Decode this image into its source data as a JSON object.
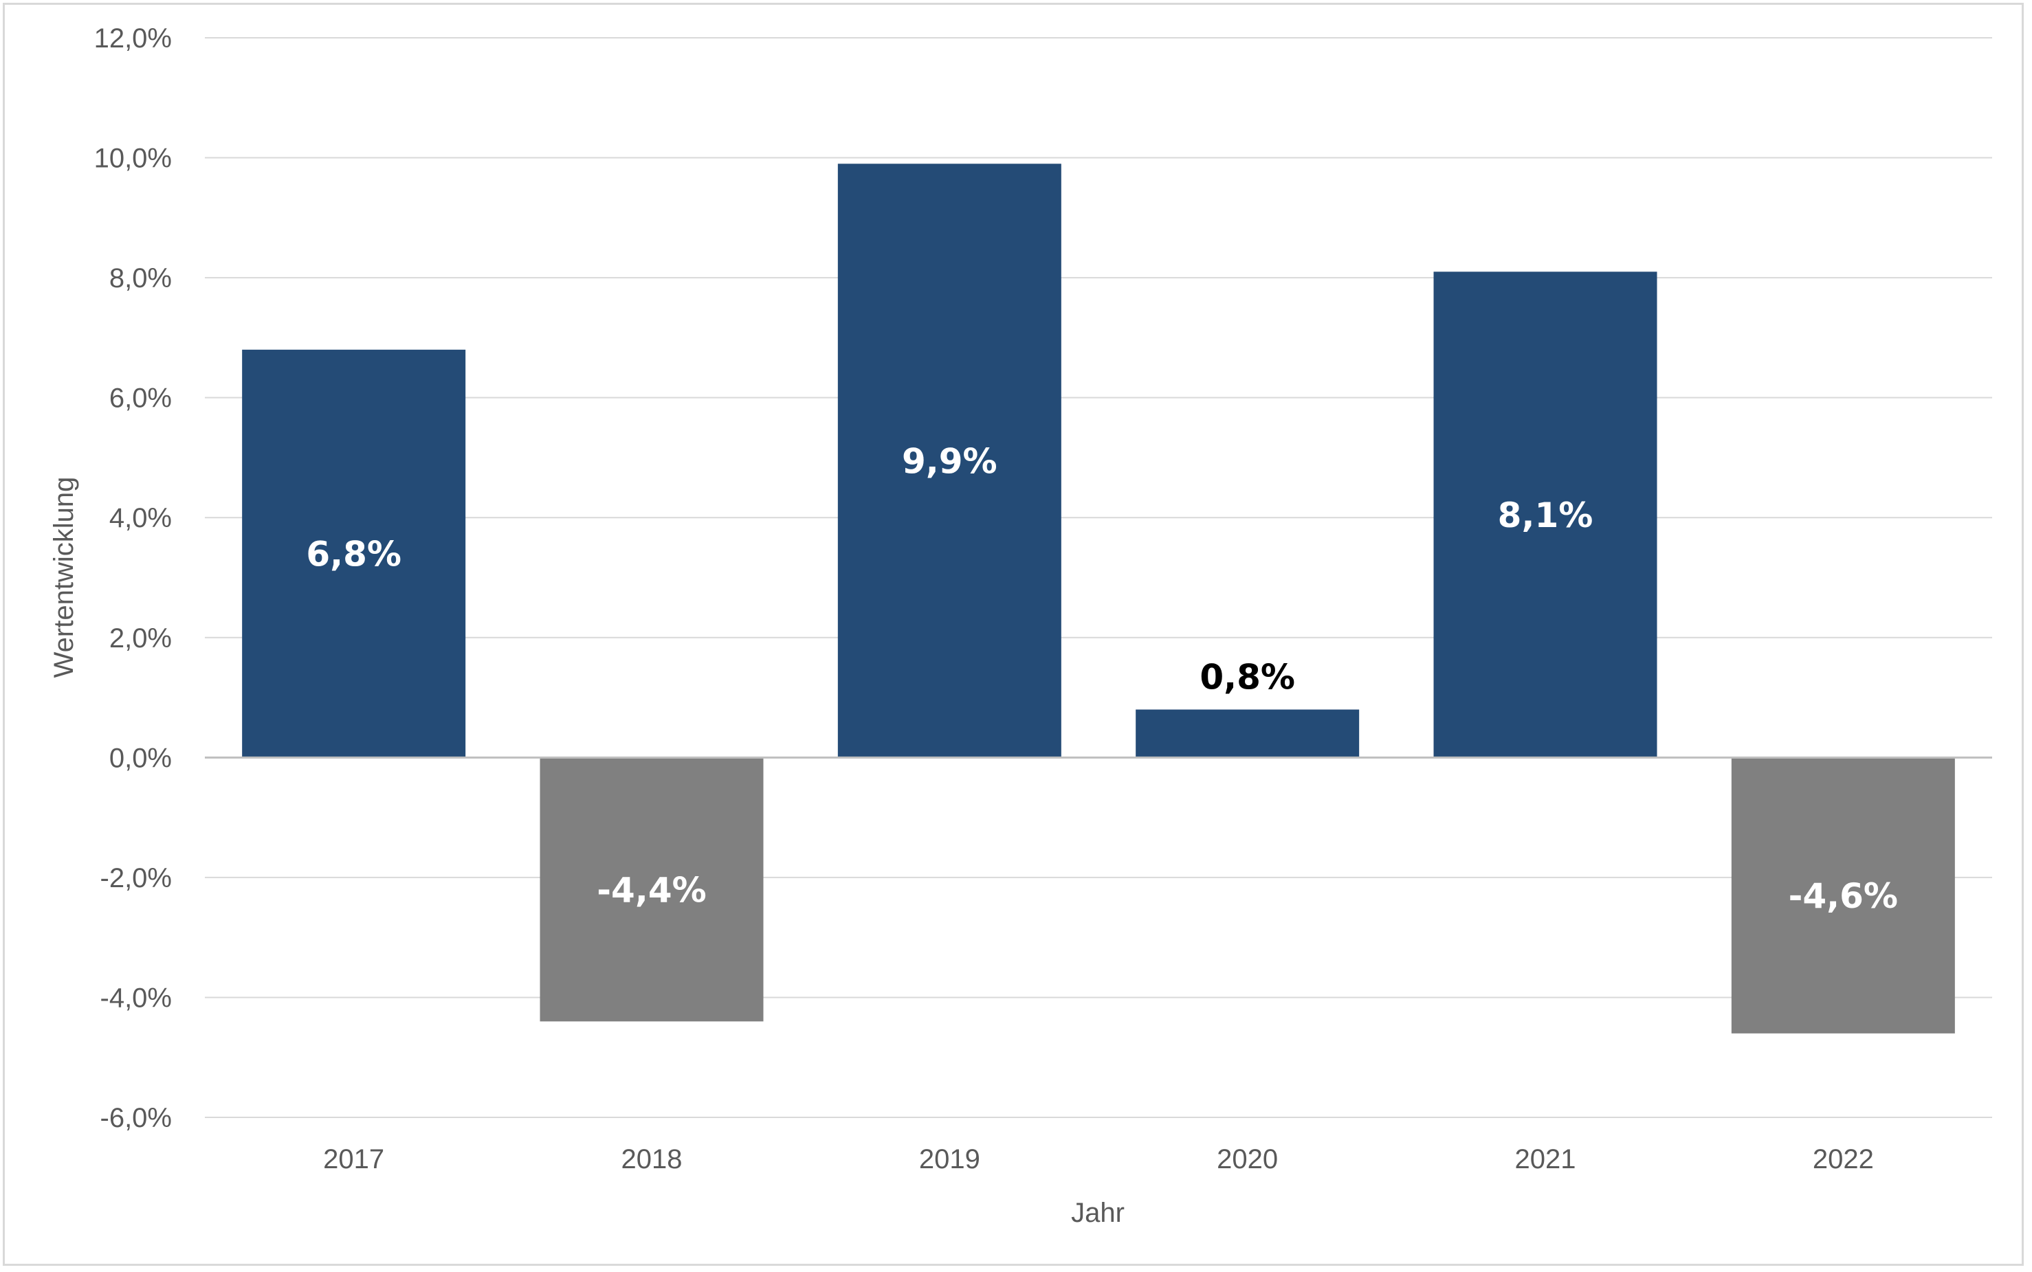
{
  "chart_data": {
    "type": "bar",
    "categories": [
      "2017",
      "2018",
      "2019",
      "2020",
      "2021",
      "2022"
    ],
    "values": [
      6.8,
      -4.4,
      9.9,
      0.8,
      8.1,
      -4.6
    ],
    "data_labels": [
      "6,8%",
      "-4,4%",
      "9,9%",
      "0,8%",
      "8,1%",
      "-4,6%"
    ],
    "xlabel": "Jahr",
    "ylabel": "Wertentwicklung",
    "ylim": [
      -6,
      12
    ],
    "yticks": [
      12,
      10,
      8,
      6,
      4,
      2,
      0,
      -2,
      -4,
      -6
    ],
    "ytick_labels": [
      "12,0%",
      "10,0%",
      "8,0%",
      "6,0%",
      "4,0%",
      "2,0%",
      "0,0%",
      "-2,0%",
      "-4,0%",
      "-6,0%"
    ],
    "grid": true,
    "legend": "none",
    "colors": {
      "positive": "#244b76",
      "negative": "#808080",
      "gridline": "#d9d9d9",
      "zero_line": "#bfbfbf",
      "label_inside": "#ffffff",
      "label_outside": "#000000",
      "tick_text": "#595959"
    }
  }
}
